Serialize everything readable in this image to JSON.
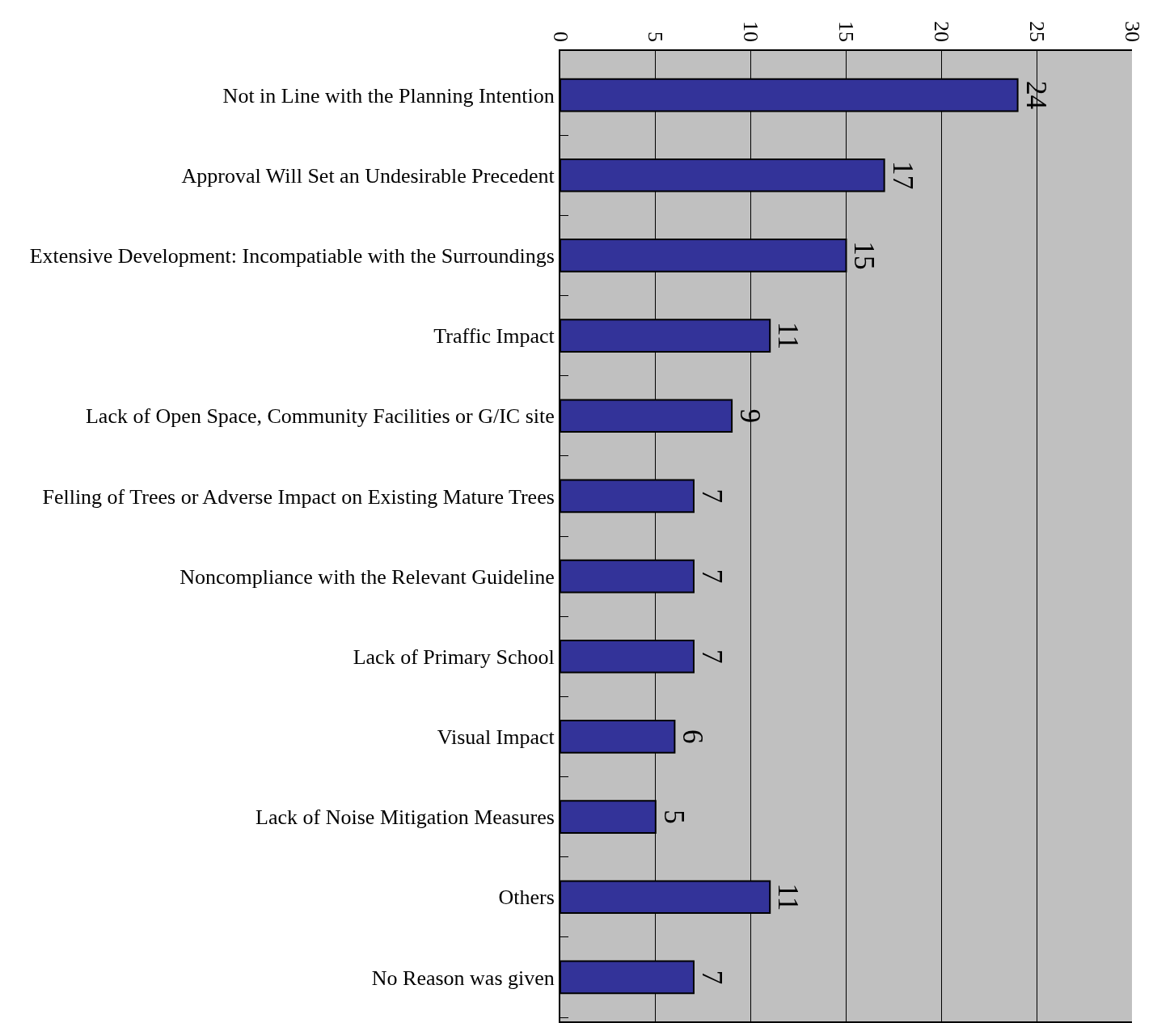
{
  "chart_data": {
    "type": "bar",
    "orientation": "horizontal",
    "categories": [
      "Not in Line with the Planning Intention",
      "Approval Will Set an Undesirable Precedent",
      "Extensive Development: Incompatiable with the Surroundings",
      "Traffic Impact",
      "Lack of Open Space, Community Facilities or G/IC site",
      "Felling of Trees or Adverse Impact on Existing Mature Trees",
      "Noncompliance with the Relevant Guideline",
      "Lack of Primary School",
      "Visual Impact",
      "Lack of Noise Mitigation Measures",
      "Others",
      "No Reason was given"
    ],
    "values": [
      24,
      17,
      15,
      11,
      9,
      7,
      7,
      7,
      6,
      5,
      11,
      7
    ],
    "color": "#333399",
    "xlim": [
      0,
      30
    ],
    "xticks": [
      0,
      5,
      10,
      15,
      20,
      25,
      30
    ],
    "grid": "x",
    "data_labels": true,
    "legend": false
  }
}
